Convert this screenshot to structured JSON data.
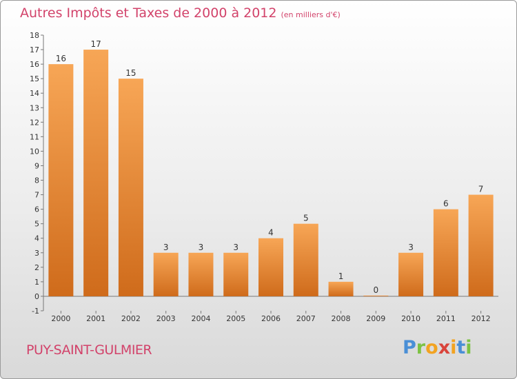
{
  "title": "Autres Impôts et Taxes de 2000 à 2012",
  "title_unit": "(en milliers d'€)",
  "commune": "PUY-SAINT-GULMIER",
  "logo": {
    "letters": [
      "P",
      "r",
      "o",
      "x",
      "i",
      "t",
      "i"
    ],
    "colors": [
      "#4a8fd6",
      "#7cc243",
      "#f2a321",
      "#d9443b",
      "#f2a321",
      "#4a8fd6",
      "#7cc243"
    ]
  },
  "colors": {
    "title": "#d2426a",
    "bar_top": "#f7a656",
    "bar_bottom": "#cf6b1b"
  },
  "chart_data": {
    "type": "bar",
    "title": "Autres Impôts et Taxes de 2000 à 2012",
    "subtitle": "(en milliers d'€)",
    "categories": [
      "2000",
      "2001",
      "2002",
      "2003",
      "2004",
      "2005",
      "2006",
      "2007",
      "2008",
      "2009",
      "2010",
      "2011",
      "2012"
    ],
    "values": [
      16,
      17,
      15,
      3,
      3,
      3,
      4,
      5,
      1,
      0,
      3,
      6,
      7
    ],
    "value_labels": [
      "16",
      "17",
      "15",
      "3",
      "3",
      "3",
      "4",
      "5",
      "1",
      "0",
      "3",
      "6",
      "7"
    ],
    "y_ticks": [
      "-1",
      "0",
      "1",
      "2",
      "3",
      "4",
      "5",
      "6",
      "7",
      "8",
      "9",
      "10",
      "11",
      "12",
      "13",
      "14",
      "15",
      "16",
      "17",
      "18"
    ],
    "xlabel": "",
    "ylabel": "",
    "ylim": [
      -1,
      18
    ],
    "grid": false,
    "legend": "none"
  }
}
